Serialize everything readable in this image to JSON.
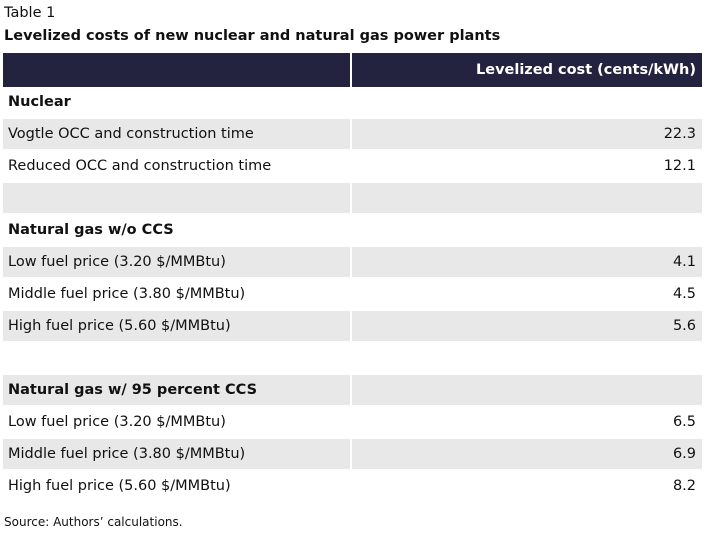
{
  "table_label": "Table 1",
  "title": "Levelized costs of new nuclear and natural gas power plants",
  "header": {
    "col1": "",
    "col2": "Levelized cost (cents/kWh)"
  },
  "rows": [
    {
      "label": "Nuclear",
      "value": ""
    },
    {
      "label": "Vogtle OCC and construction time",
      "value": "22.3"
    },
    {
      "label": "Reduced OCC and construction time",
      "value": "12.1"
    },
    {
      "label": "",
      "value": ""
    },
    {
      "label": "Natural gas w/o CCS",
      "value": ""
    },
    {
      "label": "Low fuel price (3.20 $/MMBtu)",
      "value": "4.1"
    },
    {
      "label": "Middle fuel price (3.80 $/MMBtu)",
      "value": "4.5"
    },
    {
      "label": "High fuel price (5.60 $/MMBtu)",
      "value": "5.6"
    },
    {
      "label": "",
      "value": ""
    },
    {
      "label": "Natural gas w/ 95 percent CCS",
      "value": ""
    },
    {
      "label": "Low fuel price (3.20 $/MMBtu)",
      "value": "6.5"
    },
    {
      "label": "Middle fuel price (3.80 $/MMBtu)",
      "value": "6.9"
    },
    {
      "label": "High fuel price (5.60 $/MMBtu)",
      "value": "8.2"
    }
  ],
  "source": "Source: Authors’ calculations."
}
